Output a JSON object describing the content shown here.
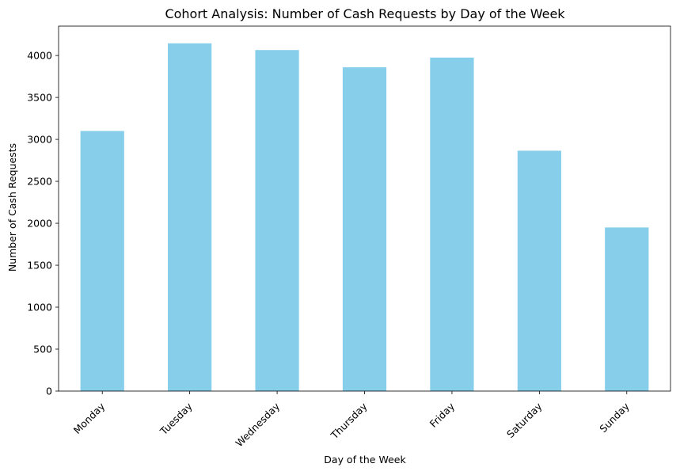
{
  "chart_data": {
    "type": "bar",
    "title": "Cohort Analysis: Number of Cash Requests by Day of the Week",
    "xlabel": "Day of the Week",
    "ylabel": "Number of Cash Requests",
    "categories": [
      "Monday",
      "Tuesday",
      "Wednesday",
      "Thursday",
      "Friday",
      "Saturday",
      "Sunday"
    ],
    "values": [
      3100,
      4145,
      4065,
      3860,
      3975,
      2865,
      1950
    ],
    "ylim": [
      0,
      4350
    ],
    "yticks": [
      0,
      500,
      1000,
      1500,
      2000,
      2500,
      3000,
      3500,
      4000
    ],
    "bar_color": "#87ceeb",
    "grid": false,
    "legend": false
  }
}
